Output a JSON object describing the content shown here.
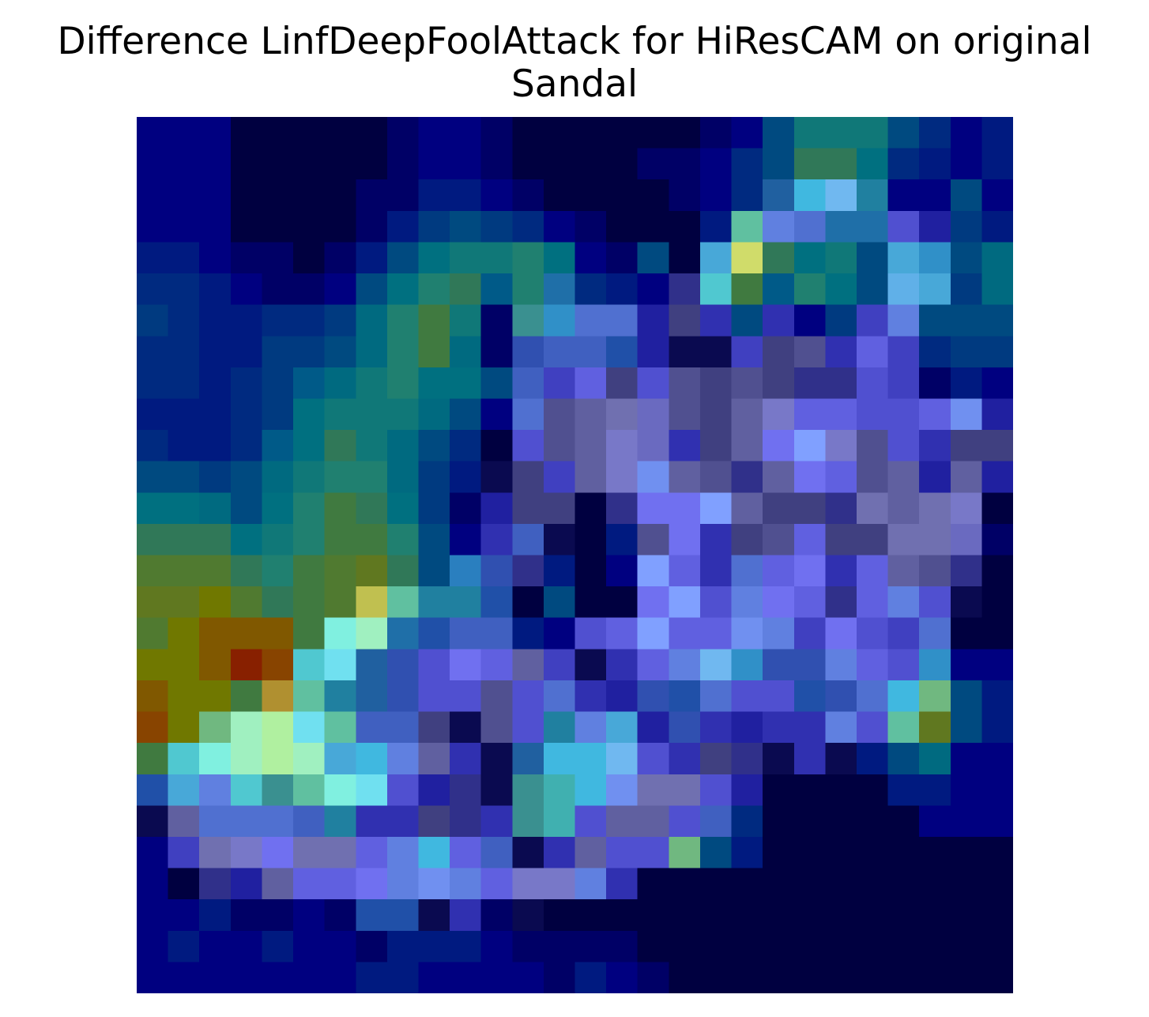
{
  "title_lines": [
    "Difference LinfDeepFoolAttack for HiResCAM on original",
    "Sandal"
  ],
  "chart_data": {
    "type": "heatmap",
    "title": "Difference LinfDeepFoolAttack for HiResCAM on original Sandal",
    "rows": 28,
    "cols": 28,
    "axes_visible": false,
    "grid": false,
    "legend": "none",
    "palette": [
      "#000040",
      "#000066",
      "#000080",
      "#0a0a50",
      "#06064a",
      "#00005a",
      "#001a80",
      "#002a80",
      "#003a80",
      "#004a80",
      "#005a88",
      "#006a80",
      "#007080",
      "#107878",
      "#208070",
      "#307858",
      "#407a40",
      "#507a30",
      "#607820",
      "#707800",
      "#805800",
      "#884400",
      "#882000",
      "#b09030",
      "#c0c050",
      "#d0dc6a",
      "#b0f0a0",
      "#a0f0c0",
      "#80f0e0",
      "#70e0f0",
      "#50c8d0",
      "#40b0b0",
      "#60c0a0",
      "#70b880",
      "#3a9090",
      "#2080a0",
      "#2060a0",
      "#2050a8",
      "#3050b0",
      "#4060c0",
      "#5070d0",
      "#6080e0",
      "#7090f0",
      "#80a0ff",
      "#7070f0",
      "#6060e0",
      "#5050d0",
      "#4040c0",
      "#3030b0",
      "#2020a0",
      "#30308a",
      "#404080",
      "#505090",
      "#6060a0",
      "#7070b0",
      "#7878c8",
      "#6a6ac0",
      "#5858b0",
      "#40b8e0",
      "#60b0e8",
      "#70b8f0",
      "#48a8d8",
      "#3090c8",
      "#2a7fbf",
      "#1f6fa8",
      "#e0e080"
    ],
    "cells": [
      [
        2,
        2,
        2,
        0,
        0,
        0,
        0,
        0,
        1,
        2,
        2,
        1,
        0,
        0,
        0,
        0,
        0,
        0,
        1,
        2,
        9,
        13,
        13,
        13,
        9,
        7,
        2,
        6
      ],
      [
        2,
        2,
        2,
        0,
        0,
        0,
        0,
        0,
        1,
        2,
        2,
        1,
        0,
        0,
        0,
        0,
        1,
        1,
        2,
        7,
        9,
        15,
        15,
        12,
        7,
        6,
        2,
        6
      ],
      [
        2,
        2,
        2,
        0,
        0,
        0,
        0,
        1,
        1,
        6,
        6,
        2,
        1,
        0,
        0,
        0,
        0,
        1,
        2,
        7,
        36,
        58,
        60,
        35,
        2,
        2,
        9,
        2
      ],
      [
        2,
        2,
        2,
        0,
        0,
        0,
        0,
        1,
        6,
        8,
        9,
        8,
        7,
        2,
        1,
        0,
        0,
        0,
        6,
        32,
        41,
        40,
        64,
        64,
        46,
        49,
        8,
        6
      ],
      [
        6,
        6,
        2,
        1,
        1,
        0,
        1,
        6,
        9,
        12,
        13,
        13,
        14,
        12,
        2,
        1,
        9,
        0,
        61,
        25,
        15,
        12,
        13,
        9,
        61,
        62,
        9,
        11
      ],
      [
        7,
        7,
        6,
        2,
        1,
        1,
        2,
        9,
        12,
        14,
        15,
        10,
        14,
        64,
        7,
        6,
        2,
        50,
        30,
        16,
        10,
        14,
        12,
        9,
        59,
        61,
        8,
        11
      ],
      [
        8,
        7,
        6,
        6,
        7,
        7,
        8,
        11,
        14,
        16,
        13,
        1,
        34,
        62,
        40,
        40,
        49,
        51,
        48,
        9,
        48,
        2,
        8,
        47,
        41,
        9,
        9,
        9
      ],
      [
        7,
        7,
        6,
        6,
        8,
        8,
        9,
        11,
        14,
        16,
        11,
        1,
        38,
        39,
        39,
        37,
        49,
        3,
        3,
        47,
        51,
        52,
        48,
        45,
        47,
        7,
        8,
        8
      ],
      [
        7,
        7,
        6,
        7,
        8,
        10,
        11,
        13,
        14,
        12,
        12,
        9,
        39,
        47,
        45,
        51,
        46,
        52,
        51,
        52,
        51,
        50,
        50,
        46,
        47,
        1,
        6,
        2
      ],
      [
        6,
        6,
        6,
        7,
        8,
        12,
        13,
        13,
        13,
        11,
        9,
        2,
        40,
        52,
        53,
        54,
        56,
        52,
        51,
        53,
        55,
        45,
        45,
        46,
        46,
        45,
        42,
        49
      ],
      [
        7,
        6,
        6,
        7,
        10,
        12,
        15,
        13,
        11,
        9,
        7,
        0,
        46,
        52,
        53,
        55,
        56,
        48,
        51,
        53,
        44,
        43,
        55,
        52,
        46,
        48,
        51,
        51
      ],
      [
        9,
        9,
        8,
        9,
        11,
        13,
        14,
        14,
        11,
        8,
        6,
        3,
        51,
        47,
        53,
        55,
        42,
        53,
        52,
        50,
        53,
        44,
        45,
        52,
        53,
        49,
        53,
        49
      ],
      [
        12,
        12,
        11,
        9,
        12,
        14,
        16,
        15,
        12,
        8,
        1,
        49,
        51,
        51,
        0,
        50,
        44,
        44,
        43,
        53,
        51,
        51,
        50,
        54,
        53,
        54,
        55,
        0
      ],
      [
        15,
        15,
        15,
        12,
        13,
        14,
        16,
        16,
        14,
        9,
        2,
        48,
        39,
        3,
        0,
        6,
        52,
        44,
        48,
        51,
        52,
        45,
        51,
        51,
        54,
        54,
        56,
        1
      ],
      [
        17,
        17,
        17,
        15,
        14,
        16,
        17,
        18,
        15,
        9,
        63,
        38,
        50,
        6,
        0,
        2,
        43,
        45,
        48,
        40,
        45,
        44,
        48,
        45,
        53,
        52,
        50,
        0
      ],
      [
        18,
        18,
        19,
        17,
        15,
        16,
        17,
        24,
        32,
        35,
        35,
        37,
        0,
        9,
        0,
        0,
        44,
        43,
        46,
        41,
        44,
        45,
        50,
        45,
        41,
        46,
        3,
        0
      ],
      [
        17,
        19,
        20,
        20,
        20,
        16,
        28,
        27,
        64,
        37,
        39,
        39,
        6,
        2,
        46,
        45,
        43,
        45,
        45,
        42,
        41,
        47,
        44,
        46,
        47,
        40,
        0,
        0
      ],
      [
        19,
        19,
        20,
        22,
        21,
        30,
        29,
        36,
        38,
        46,
        44,
        45,
        53,
        47,
        3,
        48,
        45,
        41,
        60,
        62,
        38,
        38,
        41,
        45,
        46,
        62,
        2,
        2
      ],
      [
        20,
        19,
        19,
        16,
        23,
        32,
        35,
        36,
        38,
        46,
        46,
        52,
        46,
        40,
        48,
        49,
        38,
        37,
        40,
        46,
        46,
        37,
        38,
        40,
        58,
        33,
        9,
        6
      ],
      [
        21,
        19,
        33,
        27,
        26,
        29,
        32,
        39,
        39,
        51,
        3,
        52,
        46,
        35,
        41,
        61,
        49,
        38,
        48,
        49,
        48,
        48,
        41,
        46,
        32,
        18,
        9,
        6
      ],
      [
        16,
        30,
        28,
        27,
        26,
        27,
        61,
        58,
        41,
        53,
        48,
        3,
        36,
        58,
        58,
        60,
        46,
        48,
        51,
        50,
        3,
        48,
        3,
        6,
        9,
        11,
        2,
        2
      ],
      [
        37,
        61,
        41,
        30,
        34,
        32,
        28,
        29,
        46,
        49,
        50,
        3,
        34,
        31,
        58,
        42,
        54,
        54,
        46,
        49,
        0,
        0,
        0,
        0,
        6,
        6,
        2,
        2
      ],
      [
        3,
        53,
        40,
        40,
        40,
        39,
        35,
        48,
        48,
        51,
        50,
        48,
        34,
        31,
        46,
        53,
        53,
        46,
        39,
        7,
        0,
        0,
        0,
        0,
        0,
        2,
        2,
        2
      ],
      [
        2,
        47,
        54,
        55,
        44,
        54,
        54,
        45,
        41,
        58,
        45,
        39,
        3,
        48,
        53,
        46,
        46,
        33,
        9,
        6,
        0,
        0,
        0,
        0,
        0,
        0,
        0,
        0
      ],
      [
        2,
        0,
        50,
        49,
        53,
        45,
        45,
        44,
        41,
        42,
        41,
        45,
        55,
        55,
        41,
        48,
        0,
        0,
        0,
        0,
        0,
        0,
        0,
        0,
        0,
        0,
        0,
        0
      ],
      [
        2,
        2,
        6,
        1,
        1,
        2,
        1,
        37,
        37,
        3,
        48,
        1,
        3,
        0,
        0,
        0,
        0,
        0,
        0,
        0,
        0,
        0,
        0,
        0,
        0,
        0,
        0,
        0
      ],
      [
        2,
        6,
        2,
        2,
        6,
        2,
        2,
        1,
        6,
        6,
        6,
        2,
        1,
        1,
        1,
        1,
        0,
        0,
        0,
        0,
        0,
        0,
        0,
        0,
        0,
        0,
        0,
        0
      ],
      [
        2,
        2,
        2,
        2,
        2,
        2,
        2,
        6,
        6,
        2,
        2,
        2,
        2,
        1,
        6,
        2,
        1,
        0,
        0,
        0,
        0,
        0,
        0,
        0,
        0,
        0,
        0,
        0
      ]
    ]
  }
}
